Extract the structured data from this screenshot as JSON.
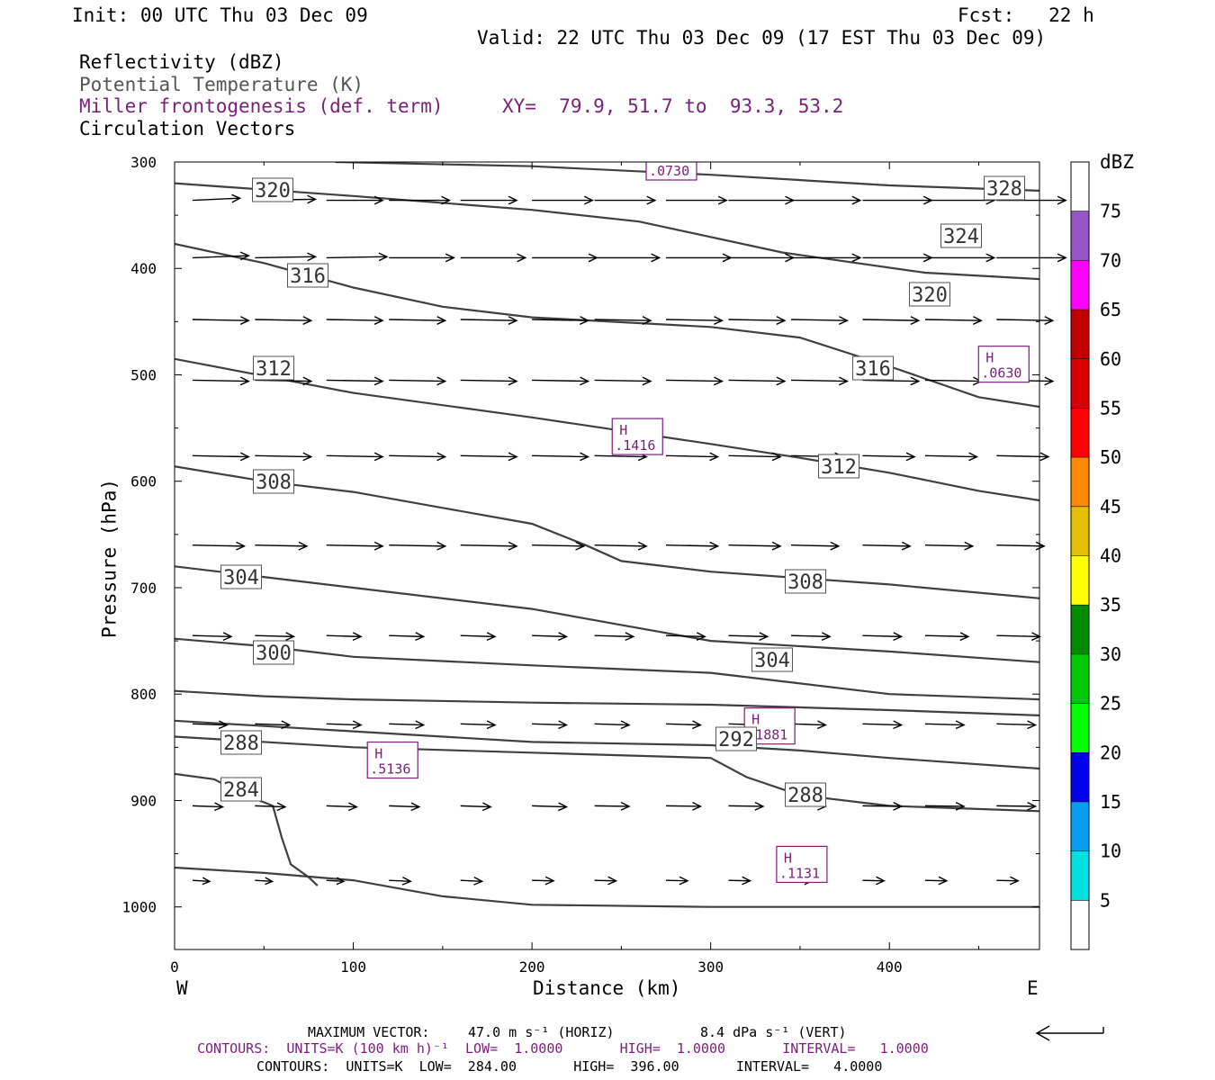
{
  "header": {
    "init": "Init: 00 UTC Thu 03 Dec 09",
    "fcst": "Fcst:   22 h",
    "valid": "Valid: 22 UTC Thu 03 Dec 09 (17 EST Thu 03 Dec 09)",
    "fields": [
      "Reflectivity (dBZ)",
      "Potential Temperature (K)",
      "Miller frontogenesis (def. term)",
      "Circulation Vectors"
    ],
    "xy": "XY=  79.9, 51.7 to  93.3, 53.2"
  },
  "footer": {
    "max_vector_label": "MAXIMUM VECTOR:",
    "max_vector_horiz": "47.0 m s⁻¹ (HORIZ)",
    "max_vector_vert": "8.4 dPa s⁻¹ (VERT)",
    "contours1": "CONTOURS:  UNITS=K (100 km h)⁻¹  LOW=  1.0000       HIGH=  1.0000       INTERVAL=   1.0000",
    "contours2": "CONTOURS:  UNITS=K  LOW=  284.00       HIGH=  396.00       INTERVAL=   4.0000"
  },
  "colors": {
    "theta": "#404040",
    "frontogenesis": "#7a1f7a",
    "vectors": "#000000"
  },
  "chart_data": {
    "type": "cross-section",
    "xlabel": "Distance (km)",
    "ylabel": "Pressure (hPa)",
    "xlim": [
      0,
      484
    ],
    "ylim": [
      1040,
      300
    ],
    "xticks": [
      0,
      100,
      200,
      300,
      400
    ],
    "yticks": [
      300,
      400,
      500,
      600,
      700,
      800,
      900,
      1000
    ],
    "x_end_labels": [
      "W",
      "E"
    ],
    "colorbar": {
      "label": "dBZ",
      "ticks": [
        5,
        10,
        15,
        20,
        25,
        30,
        35,
        40,
        45,
        50,
        55,
        60,
        65,
        70,
        75
      ],
      "colors": [
        "#ffffff",
        "#00e0e0",
        "#0a9cf0",
        "#0000e8",
        "#00ff00",
        "#00c800",
        "#008c00",
        "#ffff00",
        "#e6c000",
        "#ff8c00",
        "#ff0000",
        "#d80000",
        "#c00000",
        "#ff00ff",
        "#9656c8",
        "#ffffff"
      ]
    },
    "theta_contours": [
      {
        "label": "328",
        "points": [
          [
            90,
            300
          ],
          [
            200,
            304
          ],
          [
            300,
            312
          ],
          [
            400,
            322
          ],
          [
            484,
            327
          ]
        ]
      },
      {
        "label": "324",
        "points": [
          [
            0,
            320
          ],
          [
            100,
            332
          ],
          [
            200,
            345
          ],
          [
            260,
            356
          ],
          [
            340,
            385
          ],
          [
            420,
            404
          ],
          [
            484,
            410
          ]
        ]
      },
      {
        "label": "320",
        "points": [
          [
            0,
            377
          ],
          [
            50,
            395
          ],
          [
            100,
            418
          ],
          [
            150,
            436
          ],
          [
            200,
            446
          ],
          [
            300,
            455
          ],
          [
            350,
            465
          ],
          [
            400,
            492
          ],
          [
            450,
            521
          ],
          [
            484,
            530
          ]
        ]
      },
      {
        "label": "316",
        "points": [
          [
            0,
            485
          ],
          [
            50,
            501
          ],
          [
            100,
            517
          ],
          [
            200,
            540
          ],
          [
            300,
            565
          ],
          [
            350,
            578
          ],
          [
            400,
            592
          ],
          [
            450,
            609
          ],
          [
            484,
            618
          ]
        ]
      },
      {
        "label": "312",
        "points": [
          [
            0,
            586
          ],
          [
            50,
            600
          ],
          [
            100,
            610
          ],
          [
            150,
            625
          ],
          [
            200,
            640
          ],
          [
            230,
            660
          ],
          [
            250,
            675
          ],
          [
            300,
            685
          ],
          [
            400,
            697
          ],
          [
            484,
            710
          ]
        ]
      },
      {
        "label": "308",
        "points": [
          [
            0,
            680
          ],
          [
            50,
            690
          ],
          [
            100,
            700
          ],
          [
            200,
            720
          ],
          [
            250,
            735
          ],
          [
            300,
            750
          ],
          [
            400,
            760
          ],
          [
            484,
            770
          ]
        ]
      },
      {
        "label": "304",
        "points": [
          [
            0,
            748
          ],
          [
            50,
            755
          ],
          [
            100,
            765
          ],
          [
            200,
            773
          ],
          [
            300,
            780
          ],
          [
            400,
            800
          ],
          [
            484,
            805
          ]
        ]
      },
      {
        "label": "300",
        "points": [
          [
            0,
            797
          ],
          [
            50,
            802
          ],
          [
            100,
            805
          ],
          [
            200,
            808
          ],
          [
            300,
            810
          ],
          [
            400,
            815
          ],
          [
            484,
            820
          ]
        ]
      },
      {
        "label": "292",
        "points": [
          [
            0,
            825
          ],
          [
            50,
            830
          ],
          [
            100,
            835
          ],
          [
            200,
            845
          ],
          [
            300,
            848
          ],
          [
            350,
            853
          ],
          [
            400,
            860
          ],
          [
            484,
            870
          ]
        ]
      },
      {
        "label": "288",
        "points": [
          [
            0,
            840
          ],
          [
            100,
            850
          ],
          [
            200,
            855
          ],
          [
            300,
            860
          ],
          [
            320,
            878
          ],
          [
            350,
            895
          ],
          [
            400,
            905
          ],
          [
            484,
            910
          ]
        ]
      },
      {
        "label": "284",
        "points": [
          [
            0,
            875
          ],
          [
            22,
            880
          ],
          [
            40,
            895
          ],
          [
            55,
            905
          ],
          [
            60,
            935
          ],
          [
            65,
            960
          ],
          [
            75,
            972
          ],
          [
            80,
            980
          ]
        ]
      },
      {
        "label": "",
        "points": [
          [
            0,
            963
          ],
          [
            50,
            968
          ],
          [
            100,
            975
          ],
          [
            150,
            990
          ],
          [
            200,
            998
          ],
          [
            300,
            1000
          ],
          [
            400,
            1000
          ],
          [
            484,
            1000
          ]
        ]
      }
    ],
    "frontogenesis_maxima": [
      {
        "label": "H",
        "value": ".0730",
        "x": 278,
        "p": 300
      },
      {
        "label": "H",
        "value": ".0630",
        "x": 464,
        "p": 490
      },
      {
        "label": "H",
        "value": ".1416",
        "x": 259,
        "p": 558
      },
      {
        "label": "H",
        "value": ".1881",
        "x": 333,
        "p": 830
      },
      {
        "label": "H",
        "value": ".5136",
        "x": 122,
        "p": 862
      },
      {
        "label": "H",
        "value": ".1131",
        "x": 351,
        "p": 960
      }
    ],
    "circulation_vectors": {
      "columns_x": [
        10,
        45,
        85,
        120,
        160,
        200,
        235,
        275,
        310,
        345,
        385,
        420,
        460
      ],
      "rows": [
        {
          "p": 336,
          "u": [
            1.1,
            1.4,
            1.3,
            1.4,
            1.3,
            1.4,
            1.4,
            1.4,
            1.5,
            1.6,
            1.6,
            1.6,
            1.6
          ],
          "w": [
            -0.2,
            -0.1,
            0,
            0,
            0,
            0,
            0,
            0,
            0,
            0,
            0,
            0,
            0
          ]
        },
        {
          "p": 390,
          "u": [
            1.3,
            1.4,
            1.4,
            1.5,
            1.5,
            1.5,
            1.5,
            1.5,
            1.5,
            1.6,
            1.6,
            1.6,
            1.6
          ],
          "w": [
            -0.2,
            -0.1,
            -0.1,
            0,
            0,
            0,
            0,
            0,
            0,
            0,
            0,
            0,
            0
          ]
        },
        {
          "p": 448,
          "u": [
            1.3,
            1.3,
            1.3,
            1.3,
            1.3,
            1.3,
            1.3,
            1.3,
            1.3,
            1.3,
            1.3,
            1.3,
            1.3
          ],
          "w": [
            0.1,
            0.1,
            0.1,
            0.1,
            0.1,
            0.1,
            0.1,
            0.1,
            0.1,
            0.1,
            0.1,
            0.1,
            0.1
          ]
        },
        {
          "p": 505,
          "u": [
            1.3,
            1.3,
            1.3,
            1.3,
            1.3,
            1.3,
            1.3,
            1.3,
            1.3,
            1.3,
            1.3,
            1.3,
            1.3
          ],
          "w": [
            0.1,
            0.1,
            0.1,
            0.1,
            0.1,
            0.1,
            0.1,
            0.1,
            0.1,
            0.1,
            0.1,
            0.1,
            0.1
          ]
        },
        {
          "p": 576,
          "u": [
            1.3,
            1.3,
            1.3,
            1.3,
            1.3,
            1.3,
            1.2,
            1.2,
            1.2,
            1.2,
            1.2,
            1.2,
            1.2
          ],
          "w": [
            0.1,
            0.1,
            0.1,
            0.1,
            0.1,
            0.1,
            0.1,
            0.1,
            0.1,
            0.1,
            0.1,
            0.1,
            0.1
          ]
        },
        {
          "p": 660,
          "u": [
            1.2,
            1.2,
            1.3,
            1.3,
            1.3,
            1.2,
            1.2,
            1.2,
            1.2,
            1.1,
            1.1,
            1.1,
            1.1
          ],
          "w": [
            0.1,
            0.1,
            0.1,
            0.1,
            0.1,
            0.1,
            0.1,
            0.1,
            0.1,
            0.1,
            0.1,
            0.1,
            0.1
          ]
        },
        {
          "p": 745,
          "u": [
            0.9,
            0.9,
            0.8,
            0.8,
            0.8,
            0.8,
            0.9,
            0.9,
            0.9,
            0.9,
            0.9,
            1.0,
            1.0
          ],
          "w": [
            0.1,
            0.1,
            0.1,
            0.1,
            0.1,
            0.1,
            0.1,
            0.1,
            0.1,
            0.1,
            0.1,
            0.1,
            0.1
          ]
        },
        {
          "p": 828,
          "u": [
            0.8,
            0.8,
            0.8,
            0.8,
            0.8,
            0.8,
            0.8,
            0.8,
            0.8,
            0.8,
            0.9,
            0.9,
            0.9
          ],
          "w": [
            0.1,
            0.1,
            0.1,
            0.1,
            0.1,
            0.1,
            0.1,
            0.1,
            0.1,
            0.1,
            0.1,
            0.1,
            0.1
          ]
        },
        {
          "p": 905,
          "u": [
            0.7,
            0.7,
            0.7,
            0.7,
            0.7,
            0.8,
            0.8,
            0.8,
            0.8,
            0.8,
            0.9,
            0.9,
            0.9
          ],
          "w": [
            0.1,
            0.1,
            0.1,
            0.1,
            0.1,
            0.1,
            0.05,
            0.05,
            0.05,
            0.05,
            0.05,
            0.05,
            0.05
          ]
        },
        {
          "p": 975,
          "u": [
            0.4,
            0.4,
            0.4,
            0.5,
            0.5,
            0.5,
            0.5,
            0.5,
            0.5,
            0.5,
            0.5,
            0.5,
            0.5
          ],
          "w": [
            0.1,
            0.1,
            0.1,
            0.1,
            0.1,
            0.05,
            0.05,
            0.05,
            0.05,
            0.05,
            0.05,
            0.05,
            0.05
          ]
        }
      ]
    }
  }
}
